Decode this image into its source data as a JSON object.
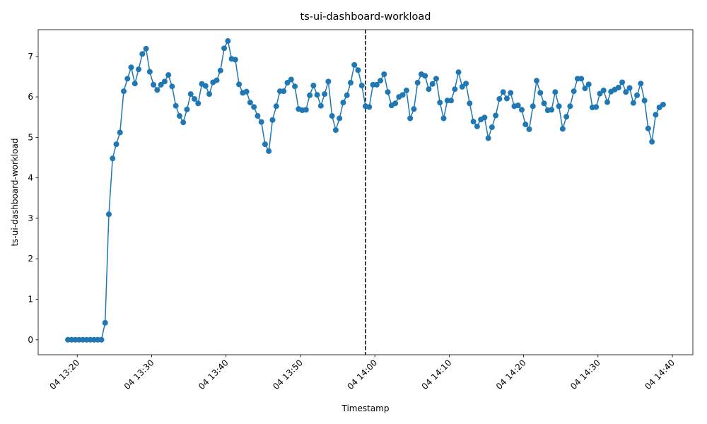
{
  "chart_data": {
    "type": "line",
    "title": "ts-ui-dashboard-workload",
    "x_label": "Timestamp",
    "y_label": "ts-ui-dashboard-workload",
    "x": [
      "04 13:18:45",
      "04 13:19:15",
      "04 13:19:45",
      "04 13:20:15",
      "04 13:20:45",
      "04 13:21:15",
      "04 13:21:45",
      "04 13:22:15",
      "04 13:22:45",
      "04 13:23:15",
      "04 13:23:45",
      "04 13:24:15",
      "04 13:24:45",
      "04 13:25:15",
      "04 13:25:45",
      "04 13:26:15",
      "04 13:26:45",
      "04 13:27:15",
      "04 13:27:45",
      "04 13:28:15",
      "04 13:28:45",
      "04 13:29:15",
      "04 13:29:45",
      "04 13:30:15",
      "04 13:30:45",
      "04 13:31:15",
      "04 13:31:45",
      "04 13:32:15",
      "04 13:32:45",
      "04 13:33:15",
      "04 13:33:45",
      "04 13:34:15",
      "04 13:34:45",
      "04 13:35:15",
      "04 13:35:45",
      "04 13:36:15",
      "04 13:36:45",
      "04 13:37:15",
      "04 13:37:45",
      "04 13:38:15",
      "04 13:38:45",
      "04 13:39:15",
      "04 13:39:45",
      "04 13:40:15",
      "04 13:40:45",
      "04 13:41:15",
      "04 13:41:45",
      "04 13:42:15",
      "04 13:42:45",
      "04 13:43:15",
      "04 13:43:45",
      "04 13:44:15",
      "04 13:44:45",
      "04 13:45:15",
      "04 13:45:45",
      "04 13:46:15",
      "04 13:46:45",
      "04 13:47:15",
      "04 13:47:45",
      "04 13:48:15",
      "04 13:48:45",
      "04 13:49:15",
      "04 13:49:45",
      "04 13:50:15",
      "04 13:50:45",
      "04 13:51:15",
      "04 13:51:45",
      "04 13:52:15",
      "04 13:52:45",
      "04 13:53:15",
      "04 13:53:45",
      "04 13:54:15",
      "04 13:54:45",
      "04 13:55:15",
      "04 13:55:45",
      "04 13:56:15",
      "04 13:56:45",
      "04 13:57:15",
      "04 13:57:45",
      "04 13:58:15",
      "04 13:58:45",
      "04 13:59:15",
      "04 13:59:45",
      "04 14:00:15",
      "04 14:00:45",
      "04 14:01:15",
      "04 14:01:45",
      "04 14:02:15",
      "04 14:02:45",
      "04 14:03:15",
      "04 14:03:45",
      "04 14:04:15",
      "04 14:04:45",
      "04 14:05:15",
      "04 14:05:45",
      "04 14:06:15",
      "04 14:06:45",
      "04 14:07:15",
      "04 14:07:45",
      "04 14:08:15",
      "04 14:08:45",
      "04 14:09:15",
      "04 14:09:45",
      "04 14:10:15",
      "04 14:10:45",
      "04 14:11:15",
      "04 14:11:45",
      "04 14:12:15",
      "04 14:12:45",
      "04 14:13:15",
      "04 14:13:45",
      "04 14:14:15",
      "04 14:14:45",
      "04 14:15:15",
      "04 14:15:45",
      "04 14:16:15",
      "04 14:16:45",
      "04 14:17:15",
      "04 14:17:45",
      "04 14:18:15",
      "04 14:18:45",
      "04 14:19:15",
      "04 14:19:45",
      "04 14:20:15",
      "04 14:20:45",
      "04 14:21:15",
      "04 14:21:45",
      "04 14:22:15",
      "04 14:22:45",
      "04 14:23:15",
      "04 14:23:45",
      "04 14:24:15",
      "04 14:24:45",
      "04 14:25:15",
      "04 14:25:45",
      "04 14:26:15",
      "04 14:26:45",
      "04 14:27:15",
      "04 14:27:45",
      "04 14:28:15",
      "04 14:28:45",
      "04 14:29:15",
      "04 14:29:45",
      "04 14:30:15",
      "04 14:30:45",
      "04 14:31:15",
      "04 14:31:45",
      "04 14:32:15",
      "04 14:32:45",
      "04 14:33:15",
      "04 14:33:45",
      "04 14:34:15",
      "04 14:34:45",
      "04 14:35:15",
      "04 14:35:45",
      "04 14:36:15",
      "04 14:36:45",
      "04 14:37:15",
      "04 14:37:45",
      "04 14:38:15",
      "04 14:38:45"
    ],
    "series": [
      {
        "color": "#1f77b4",
        "values": [
          0,
          0,
          0,
          0,
          0,
          0,
          0,
          0,
          0,
          0,
          0.42,
          3.1,
          4.48,
          4.83,
          5.12,
          6.14,
          6.45,
          6.73,
          6.33,
          6.68,
          7.06,
          7.19,
          6.62,
          6.3,
          6.17,
          6.3,
          6.38,
          6.54,
          6.26,
          5.78,
          5.53,
          5.37,
          5.69,
          6.07,
          5.95,
          5.84,
          6.32,
          6.27,
          6.07,
          6.36,
          6.41,
          6.65,
          7.2,
          7.38,
          6.94,
          6.92,
          6.31,
          6.1,
          6.13,
          5.86,
          5.75,
          5.53,
          5.38,
          4.83,
          4.66,
          5.43,
          5.77,
          6.14,
          6.14,
          6.35,
          6.43,
          6.26,
          5.7,
          5.67,
          5.68,
          6.04,
          6.28,
          6.05,
          5.78,
          6.07,
          6.38,
          5.53,
          5.18,
          5.47,
          5.86,
          6.04,
          6.35,
          6.79,
          6.66,
          6.28,
          5.77,
          5.75,
          6.3,
          6.3,
          6.4,
          6.56,
          6.12,
          5.79,
          5.84,
          6.0,
          6.05,
          6.16,
          5.47,
          5.7,
          6.35,
          6.56,
          6.52,
          6.19,
          6.32,
          6.45,
          5.86,
          5.47,
          5.91,
          5.91,
          6.19,
          6.61,
          6.25,
          6.33,
          5.84,
          5.39,
          5.27,
          5.44,
          5.49,
          4.98,
          5.25,
          5.54,
          5.95,
          6.12,
          5.96,
          6.1,
          5.77,
          5.79,
          5.68,
          5.32,
          5.2,
          5.77,
          6.4,
          6.1,
          5.84,
          5.67,
          5.68,
          6.12,
          5.77,
          5.21,
          5.51,
          5.77,
          6.14,
          6.45,
          6.45,
          6.21,
          6.31,
          5.74,
          5.75,
          6.08,
          6.16,
          5.87,
          6.13,
          6.18,
          6.23,
          6.36,
          6.12,
          6.22,
          5.85,
          6.04,
          6.33,
          5.91,
          5.22,
          4.89,
          5.56,
          5.74,
          5.81
        ]
      }
    ],
    "vline": "04 13:58:45",
    "xlim": [
      "04 13:14:45",
      "04 14:42:45"
    ],
    "xticks": [
      "04 13:20",
      "04 13:30",
      "04 13:40",
      "04 13:50",
      "04 14:00",
      "04 14:10",
      "04 14:20",
      "04 14:30",
      "04 14:40"
    ],
    "ylim": [
      -0.37,
      7.66
    ],
    "yticks": [
      0,
      1,
      2,
      3,
      4,
      5,
      6,
      7
    ]
  }
}
